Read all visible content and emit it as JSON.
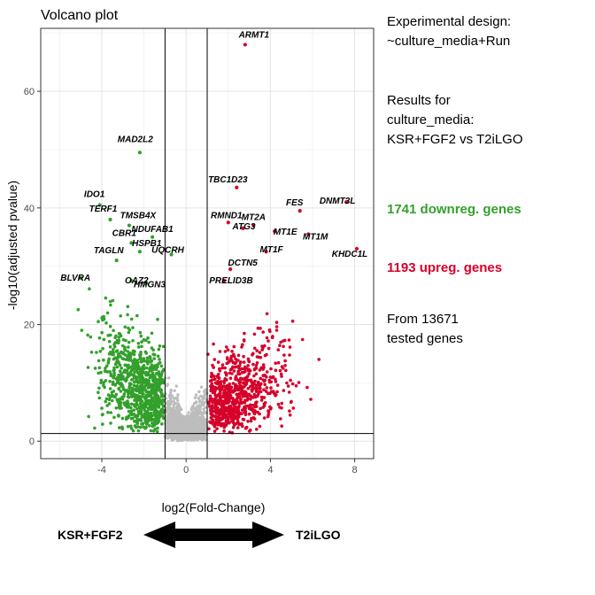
{
  "chart_data": {
    "type": "scatter",
    "title": "Volcano plot",
    "xlabel": "log2(Fold-Change)",
    "ylabel": "-log10(adjusted pvalue)",
    "xlim": [
      -6.9,
      8.9
    ],
    "ylim": [
      -3.0,
      70.8
    ],
    "xticks": [
      -4,
      0,
      4,
      8
    ],
    "yticks": [
      0,
      20,
      40,
      60
    ],
    "grid": true,
    "fc_threshold": 1,
    "padj_line": 1.3,
    "colors": {
      "down": "#33a02c",
      "up": "#d6002a",
      "ns": "#bdbdbd"
    },
    "labeled_genes": [
      {
        "gene": "ARMT1",
        "x": 2.8,
        "y": 68.0,
        "group": "up"
      },
      {
        "gene": "MAD2L2",
        "x": -2.2,
        "y": 49.5,
        "group": "down"
      },
      {
        "gene": "IDO1",
        "x": -4.1,
        "y": 40.5,
        "group": "down"
      },
      {
        "gene": "TERF1",
        "x": -3.6,
        "y": 38.0,
        "group": "down"
      },
      {
        "gene": "TMSB4X",
        "x": -2.7,
        "y": 37.0,
        "group": "down"
      },
      {
        "gene": "CBR1",
        "x": -2.6,
        "y": 34.0,
        "group": "down"
      },
      {
        "gene": "HSPB1",
        "x": -2.2,
        "y": 32.5,
        "group": "down"
      },
      {
        "gene": "TAGLN",
        "x": -3.3,
        "y": 31.0,
        "group": "down"
      },
      {
        "gene": "BLVRA",
        "x": -5.0,
        "y": 28.0,
        "group": "down"
      },
      {
        "gene": "OAZ2",
        "x": -2.6,
        "y": 27.5,
        "group": "down"
      },
      {
        "gene": "HMGN3",
        "x": -1.9,
        "y": 27.0,
        "group": "down"
      },
      {
        "gene": "NDUFAB1",
        "x": -1.6,
        "y": 35.0,
        "group": "down"
      },
      {
        "gene": "UQCRH",
        "x": -0.7,
        "y": 32.0,
        "group": "down"
      },
      {
        "gene": "TBC1D23",
        "x": 2.4,
        "y": 43.5,
        "group": "up"
      },
      {
        "gene": "RMND1",
        "x": 2.0,
        "y": 37.5,
        "group": "up"
      },
      {
        "gene": "MT2A",
        "x": 3.2,
        "y": 37.0,
        "group": "up"
      },
      {
        "gene": "ATG3",
        "x": 2.7,
        "y": 36.5,
        "group": "up"
      },
      {
        "gene": "FES",
        "x": 5.4,
        "y": 39.5,
        "group": "up"
      },
      {
        "gene": "DNMT3L",
        "x": 7.6,
        "y": 41.0,
        "group": "up"
      },
      {
        "gene": "MT1E",
        "x": 4.2,
        "y": 36.0,
        "group": "up"
      },
      {
        "gene": "MT1M",
        "x": 5.8,
        "y": 35.5,
        "group": "up"
      },
      {
        "gene": "MT1F",
        "x": 3.8,
        "y": 32.5,
        "group": "up"
      },
      {
        "gene": "DCTN5",
        "x": 2.1,
        "y": 29.5,
        "group": "up"
      },
      {
        "gene": "PRELID3B",
        "x": 1.8,
        "y": 27.5,
        "group": "up"
      },
      {
        "gene": "KHDC1L",
        "x": 8.1,
        "y": 33.0,
        "group": "up"
      }
    ]
  },
  "legend": {
    "design_text": "Experimental design:\n~culture_media+Run",
    "results_text": "Results for\nculture_media:\nKSR+FGF2 vs T2iLGO",
    "downreg_text": "1741 downreg. genes",
    "upreg_text": "1193 upreg. genes",
    "tested_text": "From 13671\ntested genes"
  },
  "direction": {
    "left_label": "KSR+FGF2",
    "right_label": "T2iLGO"
  }
}
